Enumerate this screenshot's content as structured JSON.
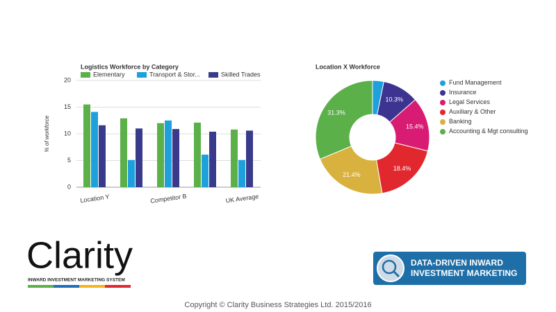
{
  "chart_data": [
    {
      "type": "bar",
      "title": "Logistics Workforce by Category",
      "y_label": "% of workforce",
      "categories": [
        "Location Y",
        null,
        "Competitor B",
        null,
        "UK Average"
      ],
      "series": [
        {
          "name": "Elementary",
          "color": "#5bb04a",
          "values": [
            15.5,
            12.9,
            12.0,
            12.1,
            10.8
          ]
        },
        {
          "name": "Transport & Stor...",
          "color": "#1ea0dc",
          "values": [
            14.1,
            5.1,
            12.5,
            6.1,
            5.1
          ]
        },
        {
          "name": "Skilled Trades",
          "color": "#3a3a8c",
          "values": [
            11.6,
            11.0,
            10.9,
            10.4,
            10.6
          ]
        }
      ],
      "ylim": [
        0,
        20
      ],
      "yticks": [
        0,
        5,
        10,
        15,
        20
      ],
      "grid": true
    },
    {
      "type": "pie",
      "title": "Location X Workforce",
      "categories": [
        "Fund Management",
        "Insurance",
        "Legal Services",
        "Auxiliary & Other",
        "Banking",
        "Accounting & Mgt consulting"
      ],
      "values": [
        3.2,
        10.3,
        15.4,
        18.4,
        21.4,
        31.3
      ],
      "value_labels": [
        null,
        "10.3%",
        "15.4%",
        "18.4%",
        "21.4%",
        "31.3%"
      ],
      "colors": [
        "#1ea0dc",
        "#3d3390",
        "#d81b73",
        "#e0282e",
        "#d9b13f",
        "#5bb04a"
      ],
      "donut": true
    }
  ],
  "branding": {
    "logo": "Clarity",
    "tagline": "INWARD INVESTMENT MARKETING SYSTEM",
    "badge": [
      "DATA-DRIVEN INWARD",
      "INVESTMENT MARKETING"
    ],
    "copyright": "Copyright © Clarity Business Strategies Ltd. 2015/2016"
  }
}
